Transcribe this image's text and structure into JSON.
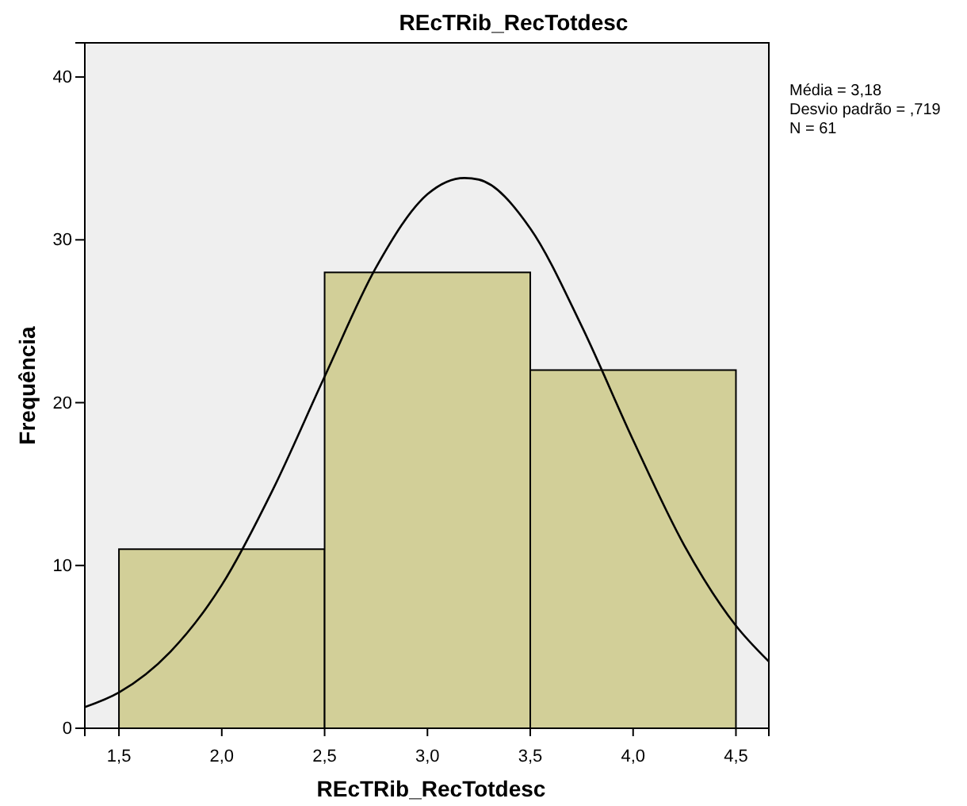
{
  "chart_data": {
    "type": "histogram",
    "title": "REcTRib_RecTotdesc",
    "xlabel": "REcTRib_RecTotdesc",
    "ylabel": "Frequência",
    "xlim": [
      1.334,
      4.66
    ],
    "ylim": [
      0,
      42.1
    ],
    "xticks": [
      {
        "value": 1.5,
        "label": "1,5"
      },
      {
        "value": 2.0,
        "label": "2,0"
      },
      {
        "value": 2.5,
        "label": "2,5"
      },
      {
        "value": 3.0,
        "label": "3,0"
      },
      {
        "value": 3.5,
        "label": "3,5"
      },
      {
        "value": 4.0,
        "label": "4,0"
      },
      {
        "value": 4.5,
        "label": "4,5"
      }
    ],
    "yticks": [
      0,
      10,
      20,
      30,
      40
    ],
    "grid": false,
    "annotations": [
      "Média = 3,18",
      "Desvio padrão = ,719",
      "N = 61"
    ],
    "series": [
      {
        "bins": [
          1.5,
          2.5,
          3.5,
          4.5
        ],
        "values": [
          11,
          28,
          22
        ],
        "color": "#d2cf98"
      },
      {
        "type": "line",
        "color": "#000000",
        "x": [
          1.334,
          1.5,
          1.75,
          2.0,
          2.25,
          2.5,
          2.75,
          3.0,
          3.18,
          3.25,
          3.5,
          3.75,
          4.0,
          4.25,
          4.5,
          4.66
        ],
        "values": [
          1.3,
          2.2,
          4.7,
          8.8,
          14.7,
          21.6,
          28.3,
          32.8,
          33.8,
          33.7,
          30.7,
          24.7,
          17.7,
          11.2,
          6.3,
          4.1
        ]
      }
    ]
  }
}
